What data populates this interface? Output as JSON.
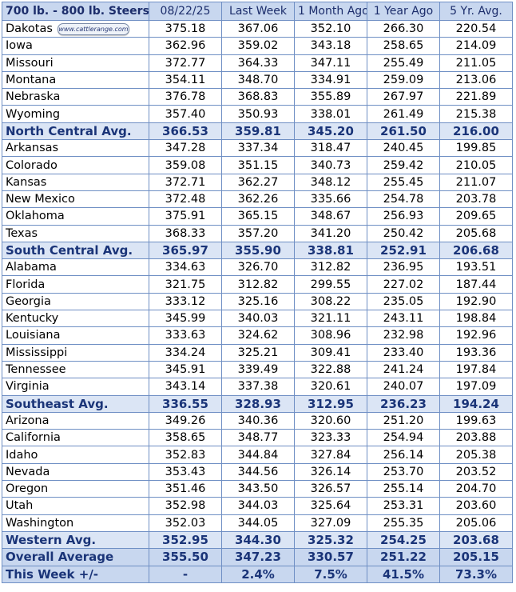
{
  "header": [
    "700 lb. - 800 lb. Steers",
    "08/22/25",
    "Last Week",
    "1 Month Ago",
    "1 Year Ago",
    "5 Yr. Avg."
  ],
  "badge_text": "www.cattlerange.com",
  "rows": [
    {
      "type": "data",
      "name": "Dakotas",
      "values": [
        "375.18",
        "367.06",
        "352.10",
        "266.30",
        "220.54"
      ],
      "badge": true
    },
    {
      "type": "data",
      "name": "Iowa",
      "values": [
        "362.96",
        "359.02",
        "343.18",
        "258.65",
        "214.09"
      ]
    },
    {
      "type": "data",
      "name": "Missouri",
      "values": [
        "372.77",
        "364.33",
        "347.11",
        "255.49",
        "211.05"
      ]
    },
    {
      "type": "data",
      "name": "Montana",
      "values": [
        "354.11",
        "348.70",
        "334.91",
        "259.09",
        "213.06"
      ]
    },
    {
      "type": "data",
      "name": "Nebraska",
      "values": [
        "376.78",
        "368.83",
        "355.89",
        "267.97",
        "221.89"
      ]
    },
    {
      "type": "data",
      "name": "Wyoming",
      "values": [
        "357.40",
        "350.93",
        "338.01",
        "261.49",
        "215.38"
      ]
    },
    {
      "type": "avg",
      "name": "North Central Avg.",
      "values": [
        "366.53",
        "359.81",
        "345.20",
        "261.50",
        "216.00"
      ]
    },
    {
      "type": "data",
      "name": "Arkansas",
      "values": [
        "347.28",
        "337.34",
        "318.47",
        "240.45",
        "199.85"
      ]
    },
    {
      "type": "data",
      "name": "Colorado",
      "values": [
        "359.08",
        "351.15",
        "340.73",
        "259.42",
        "210.05"
      ]
    },
    {
      "type": "data",
      "name": "Kansas",
      "values": [
        "372.71",
        "362.27",
        "348.12",
        "255.45",
        "211.07"
      ]
    },
    {
      "type": "data",
      "name": "New Mexico",
      "values": [
        "372.48",
        "362.26",
        "335.66",
        "254.78",
        "203.78"
      ]
    },
    {
      "type": "data",
      "name": "Oklahoma",
      "values": [
        "375.91",
        "365.15",
        "348.67",
        "256.93",
        "209.65"
      ]
    },
    {
      "type": "data",
      "name": "Texas",
      "values": [
        "368.33",
        "357.20",
        "341.20",
        "250.42",
        "205.68"
      ]
    },
    {
      "type": "avg",
      "name": "South Central Avg.",
      "values": [
        "365.97",
        "355.90",
        "338.81",
        "252.91",
        "206.68"
      ]
    },
    {
      "type": "data",
      "name": "Alabama",
      "values": [
        "334.63",
        "326.70",
        "312.82",
        "236.95",
        "193.51"
      ]
    },
    {
      "type": "data",
      "name": "Florida",
      "values": [
        "321.75",
        "312.82",
        "299.55",
        "227.02",
        "187.44"
      ]
    },
    {
      "type": "data",
      "name": "Georgia",
      "values": [
        "333.12",
        "325.16",
        "308.22",
        "235.05",
        "192.90"
      ]
    },
    {
      "type": "data",
      "name": "Kentucky",
      "values": [
        "345.99",
        "340.03",
        "321.11",
        "243.11",
        "198.84"
      ]
    },
    {
      "type": "data",
      "name": "Louisiana",
      "values": [
        "333.63",
        "324.62",
        "308.96",
        "232.98",
        "192.96"
      ]
    },
    {
      "type": "data",
      "name": "Mississippi",
      "values": [
        "334.24",
        "325.21",
        "309.41",
        "233.40",
        "193.36"
      ]
    },
    {
      "type": "data",
      "name": "Tennessee",
      "values": [
        "345.91",
        "339.49",
        "322.88",
        "241.24",
        "197.84"
      ]
    },
    {
      "type": "data",
      "name": "Virginia",
      "values": [
        "343.14",
        "337.38",
        "320.61",
        "240.07",
        "197.09"
      ]
    },
    {
      "type": "avg",
      "name": "Southeast Avg.",
      "values": [
        "336.55",
        "328.93",
        "312.95",
        "236.23",
        "194.24"
      ]
    },
    {
      "type": "data",
      "name": "Arizona",
      "values": [
        "349.26",
        "340.36",
        "320.60",
        "251.20",
        "199.63"
      ]
    },
    {
      "type": "data",
      "name": "California",
      "values": [
        "358.65",
        "348.77",
        "323.33",
        "254.94",
        "203.88"
      ]
    },
    {
      "type": "data",
      "name": "Idaho",
      "values": [
        "352.83",
        "344.84",
        "327.84",
        "256.14",
        "205.38"
      ]
    },
    {
      "type": "data",
      "name": "Nevada",
      "values": [
        "353.43",
        "344.56",
        "326.14",
        "253.70",
        "203.52"
      ]
    },
    {
      "type": "data",
      "name": "Oregon",
      "values": [
        "351.46",
        "343.50",
        "326.57",
        "255.14",
        "204.70"
      ]
    },
    {
      "type": "data",
      "name": "Utah",
      "values": [
        "352.98",
        "344.03",
        "325.64",
        "253.31",
        "203.60"
      ]
    },
    {
      "type": "data",
      "name": "Washington",
      "values": [
        "352.03",
        "344.05",
        "327.09",
        "255.35",
        "205.06"
      ]
    },
    {
      "type": "avg",
      "name": "Western Avg.",
      "values": [
        "352.95",
        "344.30",
        "325.32",
        "254.25",
        "203.68"
      ]
    },
    {
      "type": "total",
      "name": "Overall Average",
      "values": [
        "355.50",
        "347.23",
        "330.57",
        "251.22",
        "205.15"
      ]
    },
    {
      "type": "total",
      "name": "This Week +/-",
      "values": [
        "-",
        "2.4%",
        "7.5%",
        "41.5%",
        "73.3%"
      ]
    }
  ]
}
